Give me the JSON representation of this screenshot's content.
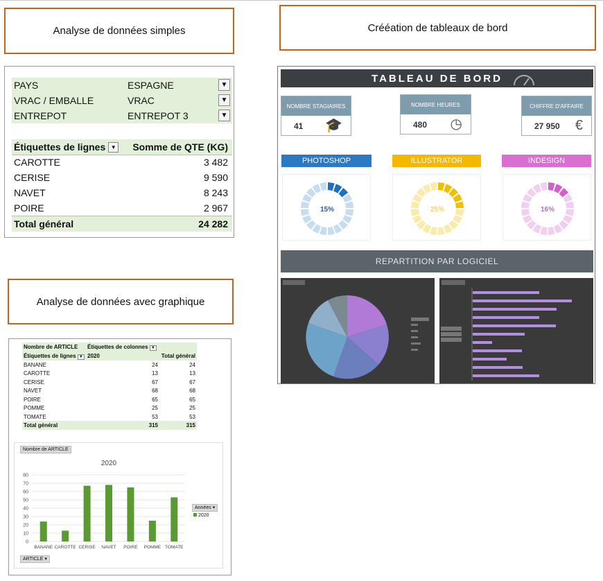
{
  "titles": {
    "simple": "Analyse de données simples",
    "dashboard": "Crééation de tableaux de bord",
    "chart": "Analyse de données avec graphique"
  },
  "pivot_simple": {
    "filters": [
      {
        "label": "PAYS",
        "value": "ESPAGNE"
      },
      {
        "label": "VRAC / EMBALLE",
        "value": "VRAC"
      },
      {
        "label": "ENTREPOT",
        "value": "ENTREPOT 3"
      }
    ],
    "row_header": "Étiquettes de lignes",
    "value_header": "Somme de QTE (KG)",
    "rows": [
      {
        "label": "CAROTTE",
        "value": "3 482"
      },
      {
        "label": "CERISE",
        "value": "9 590"
      },
      {
        "label": "NAVET",
        "value": "8 243"
      },
      {
        "label": "POIRE",
        "value": "2 967"
      }
    ],
    "total_label": "Total général",
    "total_value": "24 282"
  },
  "pivot_chart": {
    "value_field": "Nombre de ARTICLE",
    "col_header": "Étiquettes de colonnes",
    "row_header": "Étiquettes de lignes",
    "year": "2020",
    "total_col": "Total général",
    "rows": [
      {
        "label": "BANANE",
        "v": "24",
        "t": "24"
      },
      {
        "label": "CAROTTE",
        "v": "13",
        "t": "13"
      },
      {
        "label": "CERISE",
        "v": "67",
        "t": "67"
      },
      {
        "label": "NAVET",
        "v": "68",
        "t": "68"
      },
      {
        "label": "POIRE",
        "v": "65",
        "t": "65"
      },
      {
        "label": "POMME",
        "v": "25",
        "t": "25"
      },
      {
        "label": "TOMATE",
        "v": "53",
        "t": "53"
      }
    ],
    "total_label": "Total général",
    "total_v": "315",
    "total_t": "315",
    "chart_tag": "Nombre de ARTICLE",
    "legend_title": "Années",
    "legend_item": "2020",
    "axis_button": "ARTICLE"
  },
  "chart_data": {
    "type": "bar",
    "title": "2020",
    "categories": [
      "BANANE",
      "CAROTTE",
      "CERISE",
      "NAVET",
      "POIRE",
      "POMME",
      "TOMATE"
    ],
    "values": [
      24,
      13,
      67,
      68,
      65,
      25,
      53
    ],
    "series": [
      {
        "name": "2020",
        "values": [
          24,
          13,
          67,
          68,
          65,
          25,
          53
        ]
      }
    ],
    "ylim": [
      0,
      80
    ],
    "yticks": [
      "0",
      "10",
      "20",
      "30",
      "40",
      "50",
      "60",
      "70",
      "80"
    ],
    "color": "#5a9a32",
    "xlabel": "",
    "ylabel": ""
  },
  "dashboard": {
    "title": "TABLEAU DE BORD",
    "kpis": [
      {
        "label": "NOMBRE STAGIAIRES",
        "value": "41",
        "icon": "graduation-cap"
      },
      {
        "label": "NOMBRE HEURES",
        "value": "480",
        "icon": "clock"
      },
      {
        "label": "CHIFFRE D'AFFAIRE",
        "value": "27 950",
        "icon": "euro"
      }
    ],
    "software": [
      {
        "name": "PHOTOSHOP",
        "pct": "15%",
        "fraction": 0.15,
        "color": "#1f6fbf",
        "light": "#c6dcf0",
        "band": "#2b79c2"
      },
      {
        "name": "ILLUSTRATOR",
        "pct": "25%",
        "fraction": 0.25,
        "color": "#f0c000",
        "light": "#fbeaa8",
        "band": "#f5b800"
      },
      {
        "name": "INDESIGN",
        "pct": "16%",
        "fraction": 0.16,
        "color": "#d35fc8",
        "light": "#f2cfee",
        "band": "#d96fd0"
      }
    ],
    "section": "REPARTITION PAR LOGICIEL"
  }
}
